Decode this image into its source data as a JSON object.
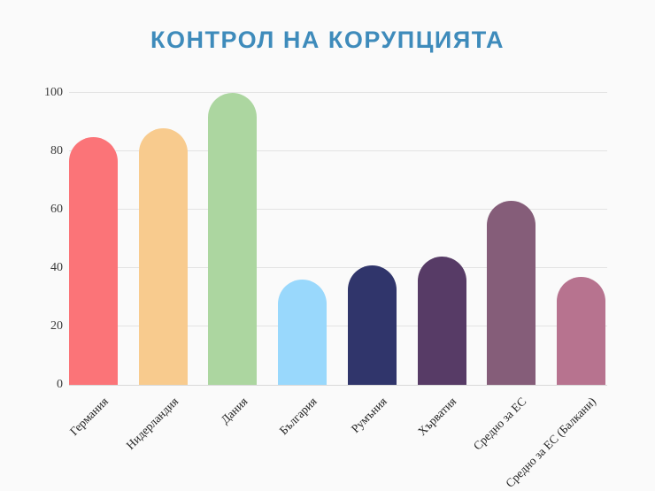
{
  "title": "КОНТРОЛ НА КОРУПЦИЯТА",
  "colors": {
    "title": "#3e8bbb",
    "background": "#fafafa",
    "gridline": "#e3e3e3",
    "axis_line": "#d9d9d9",
    "tick_text": "#3b3b3b"
  },
  "chart_data": {
    "type": "bar",
    "title": "КОНТРОЛ НА КОРУПЦИЯТА",
    "categories": [
      "Германия",
      "Нидерландия",
      "Дания",
      "България",
      "Румъния",
      "Хърватия",
      "Средно за ЕС",
      "Средно за ЕС (Балкани)"
    ],
    "values": [
      85,
      88,
      100,
      36,
      41,
      44,
      63,
      37
    ],
    "bar_colors": [
      "#fb7478",
      "#f8cb8e",
      "#acd6a0",
      "#99d8fc",
      "#30356b",
      "#573b66",
      "#855d79",
      "#b7738f"
    ],
    "xlabel": "",
    "ylabel": "",
    "ylim": [
      0,
      100
    ],
    "yticks": [
      0,
      20,
      40,
      60,
      80,
      100
    ],
    "grid": true,
    "legend": false,
    "bar_style": "rounded-top",
    "x_label_rotation_deg": 45
  }
}
